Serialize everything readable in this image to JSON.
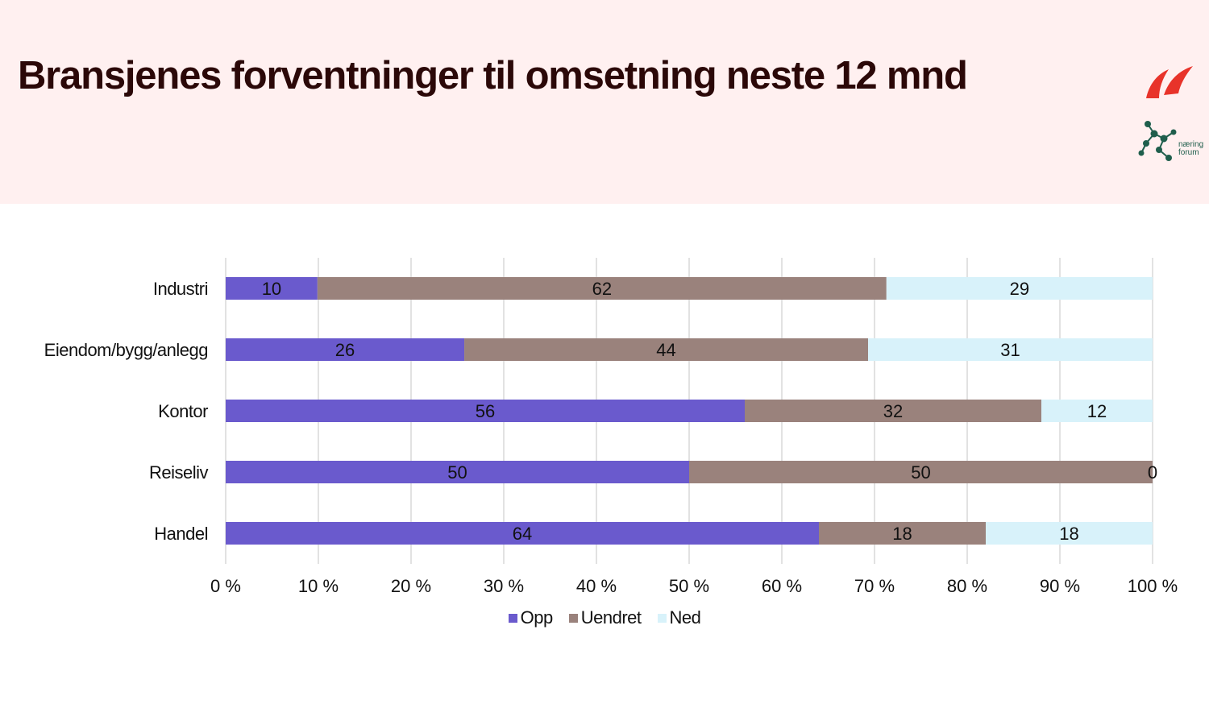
{
  "header": {
    "title": "Bransjenes forventninger til omsetning neste 12 mnd"
  },
  "logos": [
    {
      "name": "red-swoosh-logo",
      "color": "#e8332a"
    },
    {
      "name": "network-dots-logo",
      "color": "#1f5e4c",
      "text": [
        "næring",
        "forum"
      ]
    }
  ],
  "chart_data": {
    "type": "bar",
    "orientation": "horizontal",
    "stacked": "percent",
    "categories": [
      "Industri",
      "Eiendom/bygg/anlegg",
      "Kontor",
      "Reiseliv",
      "Handel"
    ],
    "series": [
      {
        "name": "Opp",
        "color": "#6a5acd",
        "values": [
          10,
          26,
          56,
          50,
          64
        ]
      },
      {
        "name": "Uendret",
        "color": "#9a827c",
        "values": [
          62,
          44,
          32,
          50,
          18
        ]
      },
      {
        "name": "Ned",
        "color": "#d8f2fa",
        "values": [
          29,
          31,
          12,
          0,
          18
        ]
      }
    ],
    "xlim": [
      0,
      100
    ],
    "xticks": [
      "0 %",
      "10 %",
      "20 %",
      "30 %",
      "40 %",
      "50 %",
      "60 %",
      "70 %",
      "80 %",
      "90 %",
      "100 %"
    ],
    "grid": true,
    "legend": "bottom"
  }
}
